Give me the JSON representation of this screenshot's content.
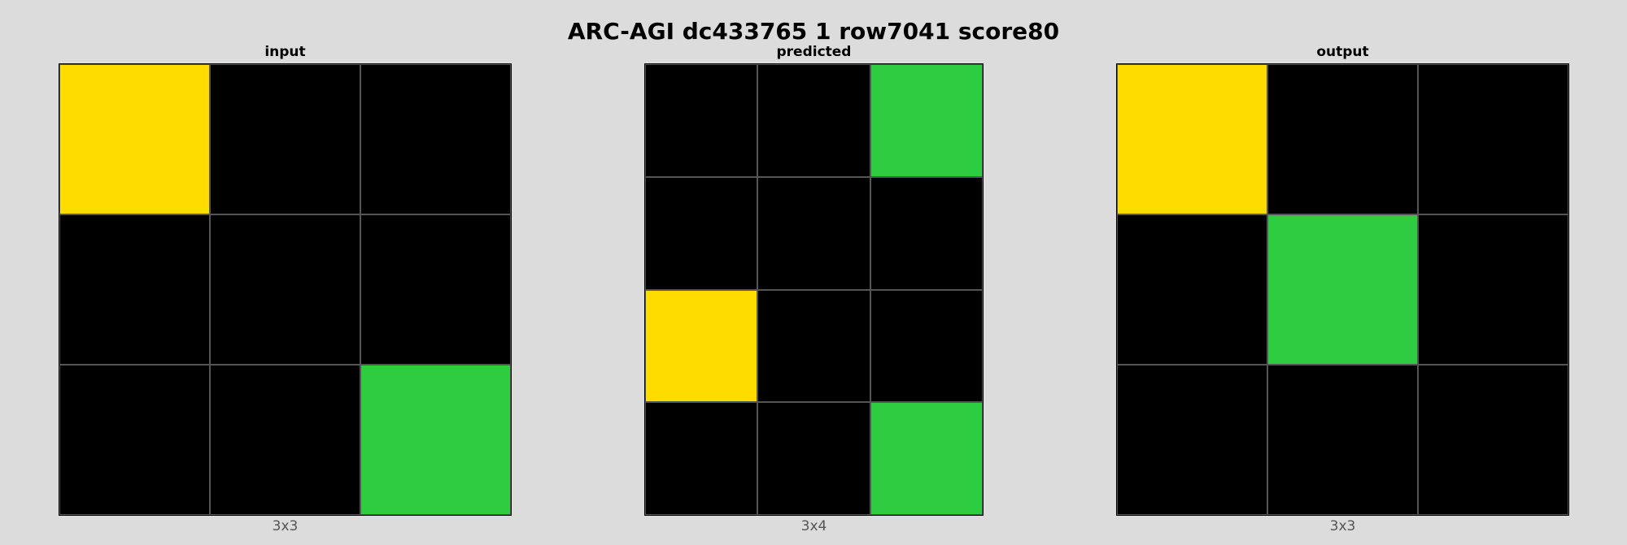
{
  "title": "ARC-AGI dc433765 1 row7041 score80",
  "palette": {
    "0": "#000000",
    "3": "#2ECC40",
    "4": "#FFDC00"
  },
  "panels": [
    {
      "label": "input",
      "size_label": "3x3",
      "grid": [
        [
          4,
          0,
          0
        ],
        [
          0,
          0,
          0
        ],
        [
          0,
          0,
          3
        ]
      ]
    },
    {
      "label": "predicted",
      "size_label": "3x4",
      "grid": [
        [
          0,
          0,
          3
        ],
        [
          0,
          0,
          0
        ],
        [
          4,
          0,
          0
        ],
        [
          0,
          0,
          3
        ]
      ]
    },
    {
      "label": "output",
      "size_label": "3x3",
      "grid": [
        [
          4,
          0,
          0
        ],
        [
          0,
          3,
          0
        ],
        [
          0,
          0,
          0
        ]
      ]
    }
  ]
}
